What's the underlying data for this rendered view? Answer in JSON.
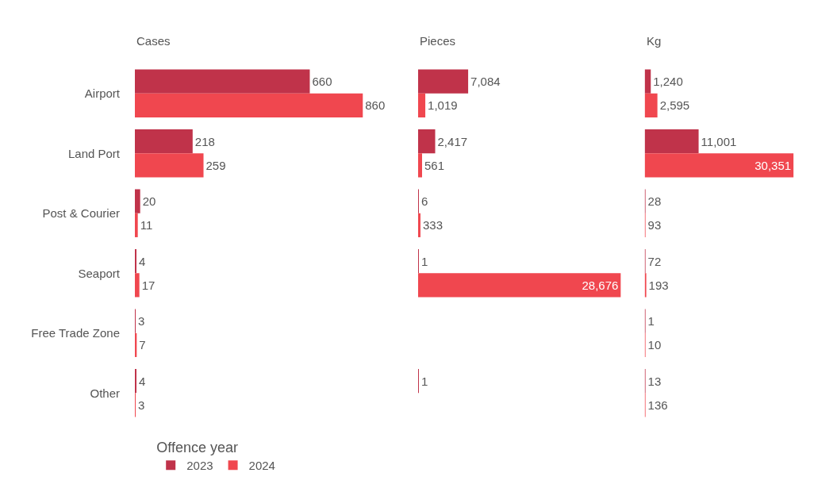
{
  "chart_data": [
    {
      "type": "bar",
      "orientation": "horizontal",
      "title": "Cases",
      "categories": [
        "Airport",
        "Land Port",
        "Post & Courier",
        "Seaport",
        "Free Trade Zone",
        "Other"
      ],
      "tick_labels": "y",
      "legend": "bottom left",
      "legend_title": "Offence year",
      "series": [
        {
          "name": "2023",
          "color": "#c0334a",
          "values": [
            660,
            218,
            20,
            4,
            3,
            4
          ],
          "value_labels": [
            "660",
            "218",
            "20",
            "4",
            "3",
            "4"
          ]
        },
        {
          "name": "2024",
          "color": "#f0474f",
          "values": [
            860,
            259,
            11,
            17,
            7,
            3
          ],
          "value_labels": [
            "860",
            "259",
            "11",
            "17",
            "7",
            "3"
          ]
        }
      ]
    },
    {
      "type": "bar",
      "orientation": "horizontal",
      "title": "Pieces",
      "tick_labels": false,
      "series": [
        {
          "color": "#c0334a",
          "values": [
            7084,
            2417,
            6,
            1,
            null,
            1
          ],
          "value_labels": [
            "7,084",
            "2,417",
            "6",
            "1",
            null,
            "1"
          ]
        },
        {
          "color": "#f0474f",
          "values": [
            1019,
            561,
            333,
            28676,
            null,
            null
          ],
          "value_labels": [
            "1,019",
            "561",
            "333",
            "28,676",
            null,
            null
          ]
        }
      ]
    },
    {
      "type": "bar",
      "orientation": "horizontal",
      "title": "Kg",
      "tick_labels": false,
      "series": [
        {
          "color": "#c0334a",
          "values": [
            1240,
            11001,
            28,
            72,
            1,
            13
          ],
          "value_labels": [
            "1,240",
            "11,001",
            "28",
            "72",
            "1",
            "13"
          ]
        },
        {
          "color": "#f0474f",
          "values": [
            2595,
            30351,
            93,
            193,
            10,
            136
          ],
          "value_labels": [
            "2,595",
            "30,351",
            "93",
            "193",
            "10",
            "136"
          ]
        }
      ]
    }
  ]
}
